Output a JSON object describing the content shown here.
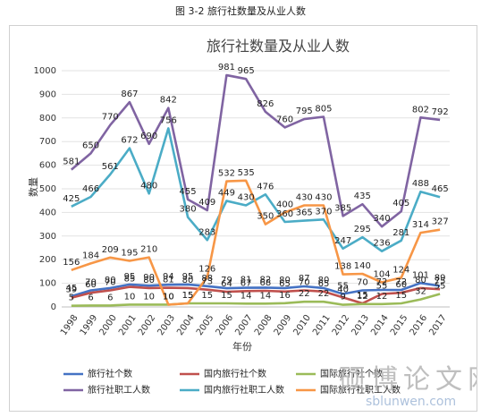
{
  "caption": "图 3-2 旅行社数量及从业人数",
  "watermark": {
    "text": "硕博论文网",
    "url": "sblunwen.com"
  },
  "chart_data": {
    "type": "line",
    "title": "旅行社数量及从业人数",
    "xlabel": "年份",
    "ylabel": "数量",
    "ylim": [
      0,
      1000
    ],
    "yticks": [
      0,
      100,
      200,
      300,
      400,
      500,
      600,
      700,
      800,
      900,
      1000
    ],
    "grid": true,
    "legend_position": "bottom",
    "categories": [
      "1998",
      "1999",
      "2000",
      "2001",
      "2002",
      "2003",
      "2004",
      "2005",
      "2006",
      "2007",
      "2008",
      "2009",
      "2010",
      "2011",
      "2012",
      "2013",
      "2014",
      "2015",
      "2016",
      "2017"
    ],
    "series": [
      {
        "name": "旅行社个数",
        "color": "#4472c4",
        "values": [
          45,
          70,
          80,
          95,
          90,
          94,
          95,
          88,
          79,
          81,
          82,
          80,
          87,
          80,
          55,
          70,
          72,
          72,
          101,
          89
        ]
      },
      {
        "name": "国内旅行社个数",
        "color": "#c0504d",
        "values": [
          39,
          60,
          70,
          85,
          80,
          81,
          80,
          73,
          64,
          67,
          68,
          65,
          70,
          65,
          40,
          15,
          55,
          60,
          80,
          75
        ]
      },
      {
        "name": "国际旅行社个数",
        "color": "#9bbb59",
        "values": [
          5,
          6,
          6,
          10,
          10,
          10,
          15,
          15,
          15,
          14,
          14,
          16,
          22,
          22,
          9,
          12,
          12,
          15,
          32,
          55
        ]
      },
      {
        "name": "旅行社职工人数",
        "color": "#8064a2",
        "values": [
          581,
          650,
          770,
          867,
          690,
          842,
          455,
          409,
          981,
          965,
          826,
          760,
          795,
          805,
          385,
          435,
          340,
          405,
          802,
          792
        ]
      },
      {
        "name": "国内旅行社职工人数",
        "color": "#4bacc6",
        "values": [
          425,
          466,
          561,
          672,
          480,
          756,
          380,
          283,
          449,
          430,
          476,
          360,
          365,
          370,
          247,
          295,
          236,
          281,
          488,
          465
        ]
      },
      {
        "name": "国际旅行社职工人数",
        "color": "#f79646",
        "values": [
          156,
          184,
          209,
          195,
          210,
          10,
          15,
          126,
          532,
          535,
          350,
          400,
          430,
          430,
          138,
          140,
          104,
          124,
          314,
          327
        ]
      }
    ]
  }
}
